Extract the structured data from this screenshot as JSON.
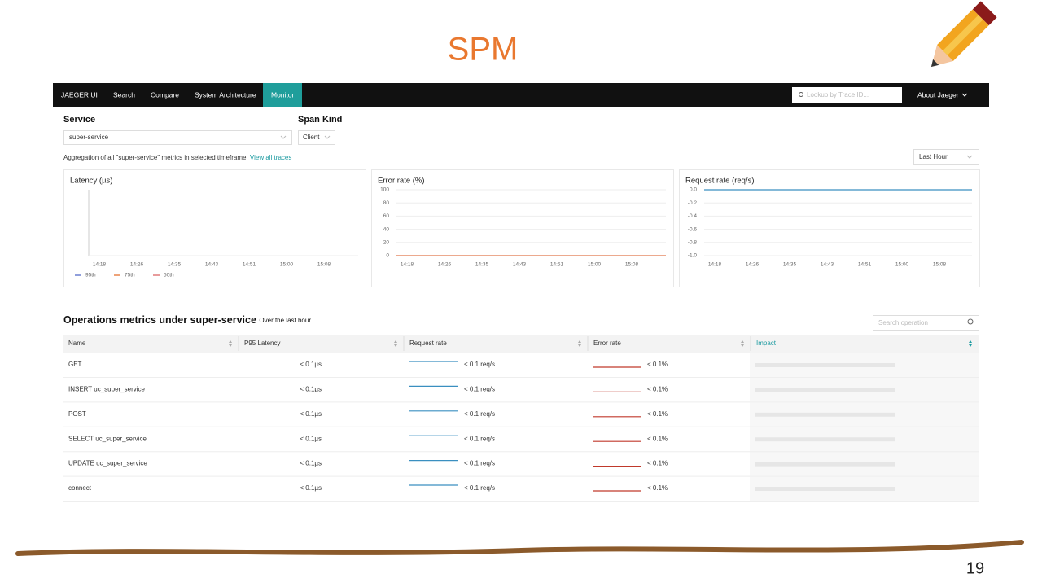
{
  "slide": {
    "title": "SPM",
    "page_number": "19"
  },
  "nav": {
    "brand": "JAEGER UI",
    "items": [
      "Search",
      "Compare",
      "System Architecture",
      "Monitor"
    ],
    "active_index": 3,
    "search_placeholder": "Lookup by Trace ID...",
    "about": "About Jaeger"
  },
  "filters": {
    "service_label": "Service",
    "service_value": "super-service",
    "span_kind_label": "Span Kind",
    "span_kind_value": "Client",
    "aggregation_text": "Aggregation of all \"super-service\" metrics in selected timeframe.",
    "aggregation_link": "View all traces",
    "timeframe": "Last Hour"
  },
  "charts": [
    {
      "title": "Latency (µs)",
      "categories": [
        "14:18",
        "14:26",
        "14:35",
        "14:43",
        "14:51",
        "15:00",
        "15:08"
      ],
      "legend": [
        {
          "name": "95th",
          "color": "#6b7fd0"
        },
        {
          "name": "75th",
          "color": "#e8844c"
        },
        {
          "name": "50th",
          "color": "#e07a7a"
        }
      ]
    },
    {
      "title": "Error rate (%)",
      "categories": [
        "14:18",
        "14:26",
        "14:35",
        "14:43",
        "14:51",
        "15:00",
        "15:08"
      ],
      "ylim": [
        0,
        100
      ],
      "yticks": [
        0,
        20,
        40,
        60,
        80,
        100
      ],
      "series": [
        {
          "color": "#e0764a",
          "values": [
            0,
            0,
            0,
            0,
            0,
            0,
            0
          ]
        }
      ]
    },
    {
      "title": "Request rate (req/s)",
      "categories": [
        "14:18",
        "14:26",
        "14:35",
        "14:43",
        "14:51",
        "15:00",
        "15:08"
      ],
      "ylim": [
        -1,
        0
      ],
      "yticks": [
        {
          "value": 0,
          "label": "0.0"
        },
        -0.2,
        -0.4,
        -0.6,
        -0.8,
        {
          "value": -1,
          "label": "-1.0"
        }
      ],
      "series": [
        {
          "color": "#3a8fc0",
          "values": [
            0,
            0,
            0,
            0,
            0,
            0,
            0
          ]
        }
      ]
    }
  ],
  "table": {
    "heading": "Operations metrics under super-service",
    "subheading": "Over the last hour",
    "search_placeholder": "Search operation",
    "columns": [
      "Name",
      "P95 Latency",
      "Request rate",
      "Error rate",
      "Impact"
    ],
    "rows": [
      [
        "GET",
        "< 0.1µs",
        "< 0.1 req/s",
        "< 0.1%"
      ],
      [
        "INSERT uc_super_service",
        "< 0.1µs",
        "< 0.1 req/s",
        "< 0.1%"
      ],
      [
        "POST",
        "< 0.1µs",
        "< 0.1 req/s",
        "< 0.1%"
      ],
      [
        "SELECT uc_super_service",
        "< 0.1µs",
        "< 0.1 req/s",
        "< 0.1%"
      ],
      [
        "UPDATE uc_super_service",
        "< 0.1µs",
        "< 0.1 req/s",
        "< 0.1%"
      ],
      [
        "connect",
        "< 0.1µs",
        "< 0.1 req/s",
        "< 0.1%"
      ]
    ]
  }
}
